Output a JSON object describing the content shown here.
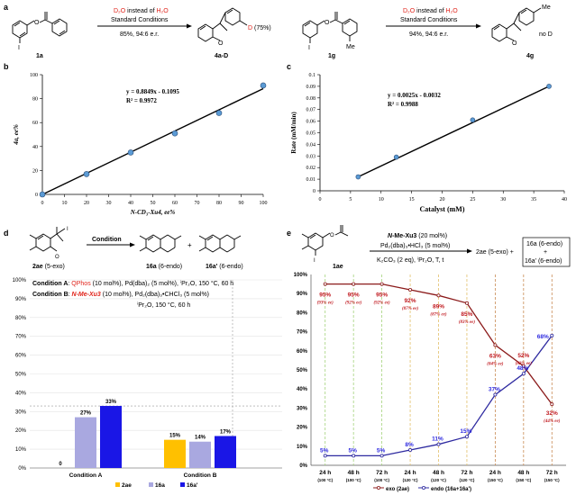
{
  "panel_letters": {
    "a": "a",
    "b": "b",
    "c": "c",
    "d": "d",
    "e": "e"
  },
  "scheme_a": {
    "left": {
      "start_label": "1a",
      "cond_line1_pre": "",
      "cond_d2o": "D₂O",
      "cond_mid": " instead of ",
      "cond_h2o": "H₂O",
      "cond_line2": "Standard Conditions",
      "result": "85%, 94:6 e.r.",
      "product_label": "4a-D",
      "d_label": "D",
      "d_pct": "(75%)",
      "iodo": "I"
    },
    "right": {
      "start_label": "1g",
      "cond_d2o": "D₂O",
      "cond_mid": " instead of ",
      "cond_h2o": "H₂O",
      "cond_line2": "Standard Conditions",
      "result": "94%, 94:6 e.r.",
      "product_label": "4g",
      "me_label": "Me",
      "me2_label": "Me",
      "no_d": "no D",
      "iodo": "I"
    }
  },
  "chart_data": [
    {
      "id": "b",
      "type": "scatter",
      "xlabel": "N-CD₃-Xu4, ee%",
      "ylabel": "4a, ee%",
      "xlim": [
        0,
        100
      ],
      "ylim": [
        0,
        100
      ],
      "xticks": [
        0,
        10,
        20,
        30,
        40,
        50,
        60,
        70,
        80,
        90,
        100
      ],
      "yticks": [
        0,
        20,
        40,
        60,
        80,
        100
      ],
      "points": [
        [
          0,
          0
        ],
        [
          20,
          17
        ],
        [
          40,
          35
        ],
        [
          60,
          51
        ],
        [
          80,
          68
        ],
        [
          100,
          91
        ]
      ],
      "fit": {
        "slope": 0.8849,
        "intercept": -0.1095
      },
      "equation": "y = 0.8849x - 0.1095",
      "r2": "R² = 0.9972",
      "marker_color": "#5b9bd5",
      "line_color": "#000000"
    },
    {
      "id": "c",
      "type": "scatter",
      "xlabel": "Catalyst (mM)",
      "ylabel": "Rate (mM/min)",
      "xlim": [
        0,
        40
      ],
      "ylim": [
        0,
        0.1
      ],
      "xticks": [
        0,
        5,
        10,
        15,
        20,
        25,
        30,
        35,
        40
      ],
      "yticks": [
        "0",
        "0.01",
        "0.02",
        "0.03",
        "0.04",
        "0.05",
        "0.06",
        "0.07",
        "0.08",
        "0.09",
        "0.1"
      ],
      "points": [
        [
          6.25,
          0.012
        ],
        [
          12.5,
          0.029
        ],
        [
          25,
          0.061
        ],
        [
          37.5,
          0.09
        ]
      ],
      "equation": "y = 0.0025x - 0.0032",
      "r2": "R² = 0.9988",
      "marker_color": "#5b9bd5",
      "line_color": "#000000"
    },
    {
      "id": "d",
      "type": "bar",
      "categories": [
        "Condition A",
        "Condition B"
      ],
      "series": [
        {
          "name": "2ae",
          "values": [
            0,
            15
          ],
          "labels": [
            "0",
            "15%"
          ],
          "color": "#ffc000"
        },
        {
          "name": "16a",
          "values": [
            27,
            14
          ],
          "labels": [
            "27%",
            "14%"
          ],
          "color": "#a9a8e0"
        },
        {
          "name": "16a'",
          "values": [
            33,
            17
          ],
          "labels": [
            "33%",
            "17%"
          ],
          "color": "#1a16e6"
        }
      ],
      "ylim": [
        0,
        100
      ],
      "yticks": [
        "0%",
        "10%",
        "20%",
        "30%",
        "40%",
        "50%",
        "60%",
        "70%",
        "80%",
        "90%",
        "100%"
      ],
      "legend": "bottom"
    },
    {
      "id": "e",
      "type": "line",
      "categories": [
        "24 h",
        "48 h",
        "72 h",
        "24 h",
        "48 h",
        "72 h",
        "24 h",
        "48 h",
        "72 h"
      ],
      "category_temps": [
        "(100 °C)",
        "(100 °C)",
        "(100 °C)",
        "(120 °C)",
        "(120 °C)",
        "(120 °C)",
        "(150 °C)",
        "(150 °C)",
        "(150 °C)"
      ],
      "series": [
        {
          "name": "exo (2ae)",
          "values": [
            95,
            95,
            95,
            92,
            89,
            85,
            63,
            52,
            32
          ],
          "color": "#8b1a1a"
        },
        {
          "name": "endo (16a+16a')",
          "values": [
            5,
            5,
            5,
            8,
            11,
            15,
            37,
            48,
            68
          ],
          "color": "#2e2aa0"
        }
      ],
      "exo_labels": [
        "95%",
        "95%",
        "95%",
        "92%",
        "89%",
        "85%",
        "63%",
        "52%",
        "32%"
      ],
      "exo_ee": [
        "(93% ee)",
        "(92% ee)",
        "(92% ee)",
        "(87% ee)",
        "(87% ee)",
        "(83% ee)",
        "(84% ee)",
        "(82% ee)",
        "(44% ee)"
      ],
      "endo_labels": [
        "5%",
        "5%",
        "5%",
        "8%",
        "11%",
        "15%",
        "37%",
        "48%",
        "68%"
      ],
      "ylim": [
        0,
        100
      ],
      "yticks": [
        "0%",
        "10%",
        "20%",
        "30%",
        "40%",
        "50%",
        "60%",
        "70%",
        "80%",
        "90%",
        "100%"
      ],
      "legend": "bottom",
      "legend_exo": "exo (2ae)",
      "legend_endo": "endo (16a+16a')"
    }
  ],
  "panel_d": {
    "start_label": "2ae",
    "start_sub": " (5-exo)",
    "condition_label": "Condition",
    "p1_label": "16a",
    "p1_sub": " (6-endo)",
    "p2_label": "16a'",
    "p2_sub": " (6-endo)",
    "plus": "+",
    "condA_title": "Condition A",
    "condA_cat": "QPhos",
    "condA_rest": " (10 mol%), Pd(dba)₂ (5 mol%), ⁱPr₂O, 150 °C, 60 h",
    "condB_title": "Condition B",
    "condB_cat": "N-Me-Xu3",
    "condB_rest": " (10 mol%), Pd₂(dba)₃•CHCl₃ (5 mol%)",
    "condB_line2": "ⁱPr₂O, 150 °C, 60 h",
    "iodo": "I"
  },
  "panel_e": {
    "start_label": "1ae",
    "reagent1": "N-Me-Xu3 (20 mol%)",
    "reagent2": "Pd₂(dba)₃•HCl₃ (5 mol%)",
    "reagent3": "K₂CO₃ (2 eq), ⁱPr₂O, T, t",
    "prod1": "2ae (5-exo) +",
    "prod2a": "16a (6-endo)",
    "prod2plus": "+",
    "prod2b": "16a' (6-endo)",
    "iodo": "I"
  }
}
